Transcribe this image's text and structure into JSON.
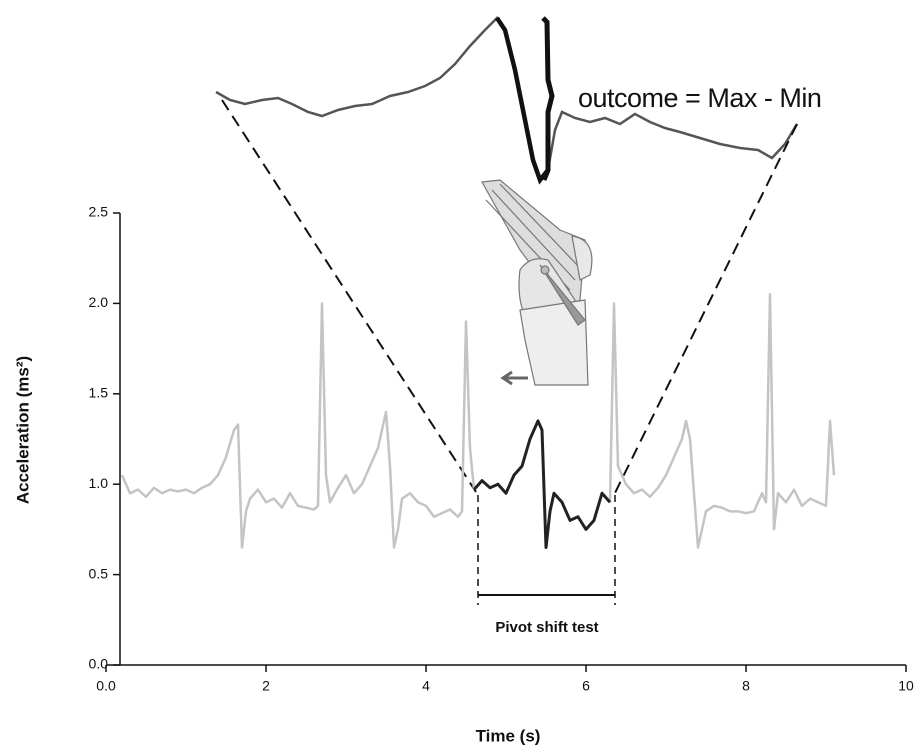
{
  "chart_data": {
    "type": "line",
    "xlabel": "Time  (s)",
    "ylabel": "Acceleration (ms²)",
    "annotations": [
      "outcome = Max - Min",
      "Pivot shift test"
    ],
    "xlim": [
      0,
      10
    ],
    "ylim": [
      0,
      2.5
    ],
    "xticks": [
      {
        "value": 0,
        "label": "0.0"
      },
      2,
      4,
      6,
      8,
      10
    ],
    "yticks": [
      {
        "value": 0,
        "label": "0.0"
      },
      0.5,
      {
        "value": 1,
        "label": "1.0"
      },
      1.5,
      {
        "value": 2,
        "label": "2.0"
      },
      2.5
    ],
    "grid": false,
    "series": [
      {
        "color": "#c4c4c4",
        "x": [
          0.2,
          0.3,
          0.4,
          0.5,
          0.6,
          0.7,
          0.8,
          0.9,
          1.0,
          1.1,
          1.2,
          1.3,
          1.4,
          1.5,
          1.6,
          1.65,
          1.7,
          1.75,
          1.8,
          1.9,
          2.0,
          2.1,
          2.2,
          2.3,
          2.4,
          2.5,
          2.6,
          2.65,
          2.7,
          2.75,
          2.8,
          2.9,
          3.0,
          3.1,
          3.2,
          3.3,
          3.4,
          3.5,
          3.55,
          3.6,
          3.65,
          3.7,
          3.8,
          3.9,
          4.0,
          4.1,
          4.2,
          4.3,
          4.4,
          4.45,
          4.5,
          4.55,
          4.6,
          4.65,
          6.3,
          6.35,
          6.4,
          6.5,
          6.6,
          6.7,
          6.8,
          6.9,
          7.0,
          7.1,
          7.2,
          7.25,
          7.3,
          7.4,
          7.45,
          7.5,
          7.6,
          7.7,
          7.8,
          7.9,
          8.0,
          8.1,
          8.2,
          8.25,
          8.3,
          8.35,
          8.4,
          8.5,
          8.6,
          8.7,
          8.8,
          8.9,
          9.0,
          9.05,
          9.1
        ],
        "values": [
          1.05,
          0.95,
          0.97,
          0.93,
          0.98,
          0.95,
          0.97,
          0.96,
          0.97,
          0.95,
          0.98,
          1.0,
          1.05,
          1.15,
          1.3,
          1.33,
          0.65,
          0.85,
          0.92,
          0.97,
          0.9,
          0.92,
          0.87,
          0.95,
          0.88,
          0.87,
          0.86,
          0.88,
          2.0,
          1.05,
          0.9,
          0.98,
          1.05,
          0.95,
          1.0,
          1.1,
          1.2,
          1.4,
          1.1,
          0.65,
          0.75,
          0.92,
          0.95,
          0.9,
          0.88,
          0.82,
          0.84,
          0.86,
          0.82,
          0.85,
          1.9,
          1.2,
          0.97,
          null,
          0.9,
          2.0,
          1.1,
          1.0,
          0.95,
          0.97,
          0.93,
          0.98,
          1.05,
          1.15,
          1.25,
          1.35,
          1.25,
          0.65,
          0.75,
          0.85,
          0.88,
          0.87,
          0.85,
          0.85,
          0.84,
          0.85,
          0.95,
          0.9,
          2.05,
          0.75,
          0.95,
          0.9,
          0.97,
          0.88,
          0.92,
          0.9,
          0.88,
          1.35,
          1.05
        ]
      },
      {
        "color": "#222222",
        "x": [
          4.6,
          4.7,
          4.8,
          4.9,
          5.0,
          5.1,
          5.2,
          5.3,
          5.4,
          5.45,
          5.5,
          5.55,
          5.6,
          5.7,
          5.8,
          5.9,
          6.0,
          6.1,
          6.2,
          6.3
        ],
        "values": [
          0.97,
          1.02,
          0.98,
          1.0,
          0.95,
          1.05,
          1.1,
          1.25,
          1.35,
          1.3,
          0.65,
          0.85,
          0.95,
          0.9,
          0.8,
          0.82,
          0.75,
          0.8,
          0.95,
          0.9
        ]
      }
    ]
  }
}
